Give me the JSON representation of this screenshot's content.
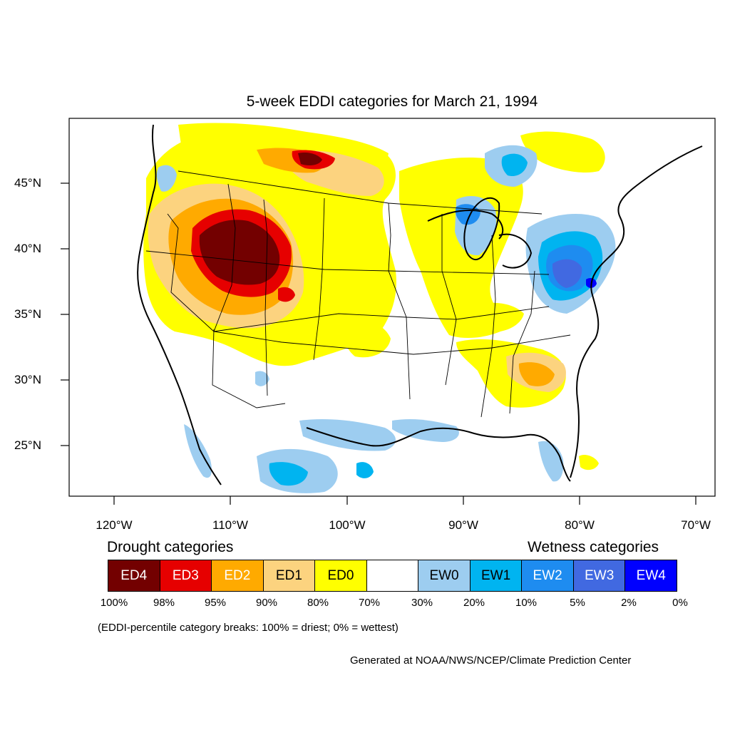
{
  "title": "5-week EDDI categories for March 21, 1994",
  "axes": {
    "longitude_ticks": [
      "120°W",
      "110°W",
      "100°W",
      "90°W",
      "80°W",
      "70°W"
    ],
    "latitude_ticks": [
      "45°N",
      "40°N",
      "35°N",
      "30°N",
      "25°N"
    ]
  },
  "legend": {
    "drought_heading": "Drought categories",
    "wetness_heading": "Wetness categories",
    "categories": [
      {
        "label": "ED4",
        "color": "#730000",
        "text_color": "#ffffff"
      },
      {
        "label": "ED3",
        "color": "#e60000",
        "text_color": "#ffffff"
      },
      {
        "label": "ED2",
        "color": "#ffaa00",
        "text_color": "#ffffff"
      },
      {
        "label": "ED1",
        "color": "#fcd37f",
        "text_color": "#000000"
      },
      {
        "label": "ED0",
        "color": "#ffff00",
        "text_color": "#000000"
      },
      {
        "label": "",
        "color": "#ffffff",
        "text_color": "#000000"
      },
      {
        "label": "EW0",
        "color": "#9dcdf0",
        "text_color": "#000000"
      },
      {
        "label": "EW1",
        "color": "#00b4f0",
        "text_color": "#000000"
      },
      {
        "label": "EW2",
        "color": "#1e8cf0",
        "text_color": "#ffffff"
      },
      {
        "label": "EW3",
        "color": "#4169e1",
        "text_color": "#ffffff"
      },
      {
        "label": "EW4",
        "color": "#0000ff",
        "text_color": "#ffffff"
      }
    ],
    "breaks": [
      "100%",
      "98%",
      "95%",
      "90%",
      "80%",
      "70%",
      "30%",
      "20%",
      "10%",
      "5%",
      "2%",
      "0%"
    ]
  },
  "note": "(EDDI-percentile category breaks: 100% = driest; 0% = wettest)",
  "credit": "Generated at NOAA/NWS/NCEP/Climate Prediction Center"
}
